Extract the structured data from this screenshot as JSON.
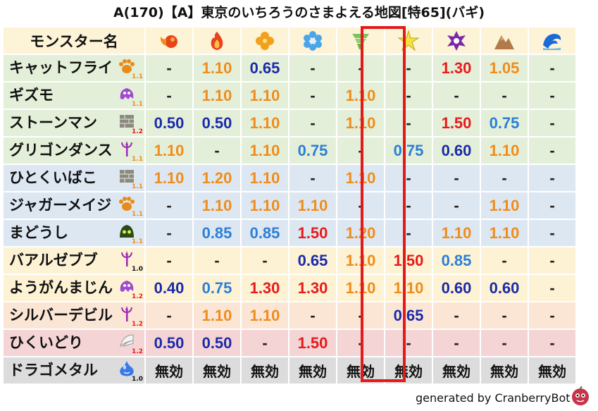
{
  "title": "A(170)【A】東京のいちろうのさまよえる地図[特65](バギ)",
  "header_label": "モンスター名",
  "elements": [
    {
      "icon": "fire-ball-icon",
      "color": "#e8431a"
    },
    {
      "icon": "flame-icon",
      "color": "#e8431a"
    },
    {
      "icon": "clover-icon",
      "color": "#f2a11a"
    },
    {
      "icon": "ice-flower-icon",
      "color": "#4aa6e8"
    },
    {
      "icon": "tornado-icon",
      "color": "#7dc25e"
    },
    {
      "icon": "spark-icon",
      "color": "#f5e23a"
    },
    {
      "icon": "dark-swirl-icon",
      "color": "#7a2aa8"
    },
    {
      "icon": "rock-icon",
      "color": "#b07a4a"
    },
    {
      "icon": "wave-icon",
      "color": "#1a6ad8"
    }
  ],
  "rows": [
    {
      "name": "キャットフライ",
      "icon": "paw-icon",
      "tier": "1.1",
      "bg": "green",
      "values": [
        {
          "v": "-",
          "c": "dash"
        },
        {
          "v": "1.10",
          "c": "orange"
        },
        {
          "v": "0.65",
          "c": "navy"
        },
        {
          "v": "-",
          "c": "dash"
        },
        {
          "v": "-",
          "c": "dash"
        },
        {
          "v": "-",
          "c": "dash"
        },
        {
          "v": "1.30",
          "c": "red"
        },
        {
          "v": "1.05",
          "c": "orange"
        },
        {
          "v": "-",
          "c": "dash"
        }
      ]
    },
    {
      "name": "ギズモ",
      "icon": "ghost-icon",
      "tier": "1.1",
      "bg": "green",
      "values": [
        {
          "v": "-",
          "c": "dash"
        },
        {
          "v": "1.10",
          "c": "orange"
        },
        {
          "v": "1.10",
          "c": "orange"
        },
        {
          "v": "-",
          "c": "dash"
        },
        {
          "v": "1.10",
          "c": "orange"
        },
        {
          "v": "-",
          "c": "dash"
        },
        {
          "v": "-",
          "c": "dash"
        },
        {
          "v": "-",
          "c": "dash"
        },
        {
          "v": "-",
          "c": "dash"
        }
      ]
    },
    {
      "name": "ストーンマン",
      "icon": "brick-icon",
      "tier": "1.2",
      "bg": "green",
      "values": [
        {
          "v": "0.50",
          "c": "navy"
        },
        {
          "v": "0.50",
          "c": "navy"
        },
        {
          "v": "1.10",
          "c": "orange"
        },
        {
          "v": "-",
          "c": "dash"
        },
        {
          "v": "1.10",
          "c": "orange"
        },
        {
          "v": "-",
          "c": "dash"
        },
        {
          "v": "1.50",
          "c": "red"
        },
        {
          "v": "0.75",
          "c": "sky"
        },
        {
          "v": "-",
          "c": "dash"
        }
      ]
    },
    {
      "name": "グリゴンダンス",
      "icon": "trident-icon",
      "tier": "1.1",
      "bg": "green",
      "values": [
        {
          "v": "1.10",
          "c": "orange"
        },
        {
          "v": "-",
          "c": "dash"
        },
        {
          "v": "1.10",
          "c": "orange"
        },
        {
          "v": "0.75",
          "c": "sky"
        },
        {
          "v": "-",
          "c": "dash"
        },
        {
          "v": "0.75",
          "c": "sky"
        },
        {
          "v": "0.60",
          "c": "navy"
        },
        {
          "v": "1.10",
          "c": "orange"
        },
        {
          "v": "-",
          "c": "dash"
        }
      ]
    },
    {
      "name": "ひとくいばこ",
      "icon": "brick-icon",
      "tier": "1.1",
      "bg": "blue",
      "values": [
        {
          "v": "1.10",
          "c": "orange"
        },
        {
          "v": "1.20",
          "c": "orange"
        },
        {
          "v": "1.10",
          "c": "orange"
        },
        {
          "v": "-",
          "c": "dash"
        },
        {
          "v": "1.10",
          "c": "orange"
        },
        {
          "v": "-",
          "c": "dash"
        },
        {
          "v": "-",
          "c": "dash"
        },
        {
          "v": "-",
          "c": "dash"
        },
        {
          "v": "-",
          "c": "dash"
        }
      ]
    },
    {
      "name": "ジャガーメイジ",
      "icon": "paw-icon",
      "tier": "1.1",
      "bg": "blue",
      "values": [
        {
          "v": "-",
          "c": "dash"
        },
        {
          "v": "1.10",
          "c": "orange"
        },
        {
          "v": "1.10",
          "c": "orange"
        },
        {
          "v": "1.10",
          "c": "orange"
        },
        {
          "v": "-",
          "c": "dash"
        },
        {
          "v": "-",
          "c": "dash"
        },
        {
          "v": "-",
          "c": "dash"
        },
        {
          "v": "1.10",
          "c": "orange"
        },
        {
          "v": "-",
          "c": "dash"
        }
      ]
    },
    {
      "name": "まどうし",
      "icon": "slime-icon",
      "tier": "1.1",
      "bg": "blue",
      "values": [
        {
          "v": "-",
          "c": "dash"
        },
        {
          "v": "0.85",
          "c": "sky"
        },
        {
          "v": "0.85",
          "c": "sky"
        },
        {
          "v": "1.50",
          "c": "red"
        },
        {
          "v": "1.20",
          "c": "orange"
        },
        {
          "v": "-",
          "c": "dash"
        },
        {
          "v": "1.10",
          "c": "orange"
        },
        {
          "v": "1.10",
          "c": "orange"
        },
        {
          "v": "-",
          "c": "dash"
        }
      ]
    },
    {
      "name": "バアルゼブブ",
      "icon": "trident-icon",
      "tier": "1.0",
      "bg": "yellow",
      "values": [
        {
          "v": "-",
          "c": "dash"
        },
        {
          "v": "-",
          "c": "dash"
        },
        {
          "v": "-",
          "c": "dash"
        },
        {
          "v": "0.65",
          "c": "navy"
        },
        {
          "v": "1.10",
          "c": "orange"
        },
        {
          "v": "1.50",
          "c": "red"
        },
        {
          "v": "0.85",
          "c": "sky"
        },
        {
          "v": "-",
          "c": "dash"
        },
        {
          "v": "-",
          "c": "dash"
        }
      ]
    },
    {
      "name": "ようがんまじん",
      "icon": "ghost-icon",
      "tier": "1.2",
      "bg": "yellow",
      "values": [
        {
          "v": "0.40",
          "c": "navy"
        },
        {
          "v": "0.75",
          "c": "sky"
        },
        {
          "v": "1.30",
          "c": "red"
        },
        {
          "v": "1.30",
          "c": "red"
        },
        {
          "v": "1.10",
          "c": "orange"
        },
        {
          "v": "1.10",
          "c": "orange"
        },
        {
          "v": "0.60",
          "c": "navy"
        },
        {
          "v": "0.60",
          "c": "navy"
        },
        {
          "v": "-",
          "c": "dash"
        }
      ]
    },
    {
      "name": "シルバーデビル",
      "icon": "trident-icon",
      "tier": "1.2",
      "bg": "peach",
      "values": [
        {
          "v": "-",
          "c": "dash"
        },
        {
          "v": "1.10",
          "c": "orange"
        },
        {
          "v": "1.10",
          "c": "orange"
        },
        {
          "v": "-",
          "c": "dash"
        },
        {
          "v": "-",
          "c": "dash"
        },
        {
          "v": "0.65",
          "c": "navy"
        },
        {
          "v": "-",
          "c": "dash"
        },
        {
          "v": "-",
          "c": "dash"
        },
        {
          "v": "-",
          "c": "dash"
        }
      ]
    },
    {
      "name": "ひくいどり",
      "icon": "wing-icon",
      "tier": "1.2",
      "bg": "pink",
      "values": [
        {
          "v": "0.50",
          "c": "navy"
        },
        {
          "v": "0.50",
          "c": "navy"
        },
        {
          "v": "-",
          "c": "dash"
        },
        {
          "v": "1.50",
          "c": "red"
        },
        {
          "v": "-",
          "c": "dash"
        },
        {
          "v": "-",
          "c": "dash"
        },
        {
          "v": "-",
          "c": "dash"
        },
        {
          "v": "-",
          "c": "dash"
        },
        {
          "v": "-",
          "c": "dash"
        }
      ]
    },
    {
      "name": "ドラゴメタル",
      "icon": "metal-slime-icon",
      "tier": "1.0",
      "bg": "gray",
      "values": [
        {
          "v": "無効",
          "c": "void"
        },
        {
          "v": "無効",
          "c": "void"
        },
        {
          "v": "無効",
          "c": "void"
        },
        {
          "v": "無効",
          "c": "void"
        },
        {
          "v": "無効",
          "c": "void"
        },
        {
          "v": "無効",
          "c": "void"
        },
        {
          "v": "無効",
          "c": "void"
        },
        {
          "v": "無効",
          "c": "void"
        },
        {
          "v": "無効",
          "c": "void"
        }
      ]
    }
  ],
  "tier_colors": {
    "1.0": "#111111",
    "1.1": "#f08c1a",
    "1.2": "#e81a1a"
  },
  "highlight_column": 4,
  "footer": "generated by CranberryBot"
}
